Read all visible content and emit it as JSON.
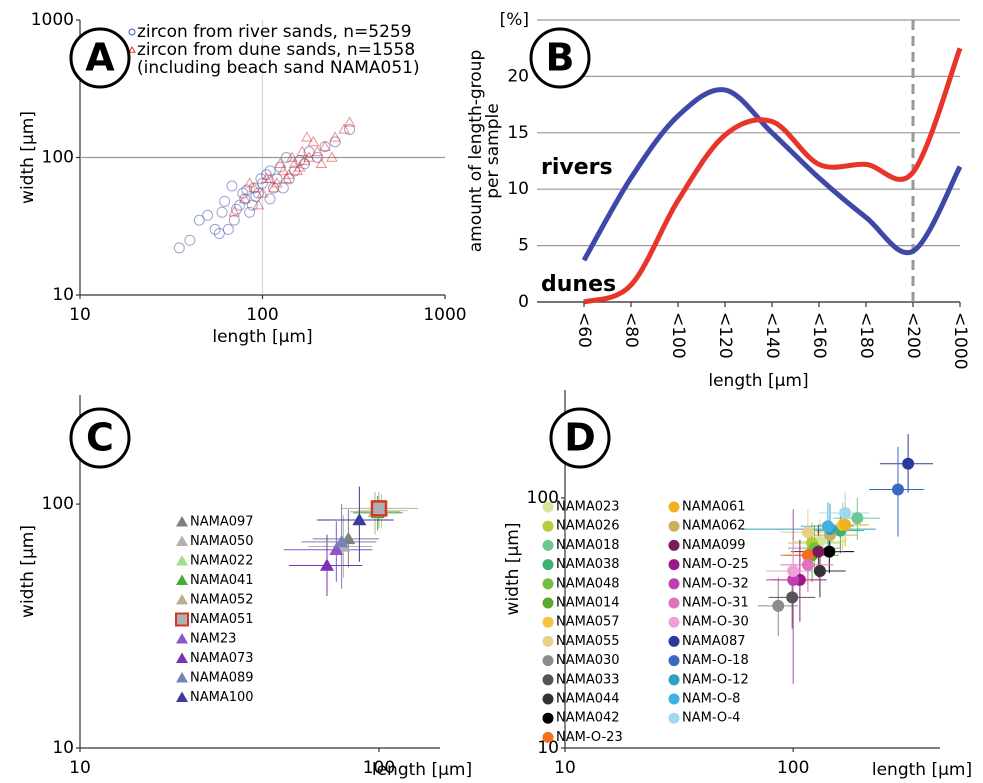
{
  "chart_data": [
    {
      "type": "scatter",
      "panel_label": "A",
      "xlabel": "length [µm]",
      "ylabel": "width [µm]",
      "log_x": true,
      "log_y": true,
      "xlim": [
        10,
        1000
      ],
      "ylim": [
        10,
        1000
      ],
      "xticks": [
        10,
        100,
        1000
      ],
      "yticks": [
        10,
        100,
        1000
      ],
      "grid": true,
      "legend_note": "(including beach sand NAMA051)",
      "series": [
        {
          "name": "zircon from river sands, n=5259",
          "color": "#4a5ab0",
          "marker": "circle",
          "x": [
            40,
            55,
            60,
            70,
            75,
            80,
            85,
            90,
            95,
            100,
            110,
            120,
            130,
            150,
            170,
            200,
            250,
            300,
            45,
            65,
            78,
            88,
            105,
            115,
            140,
            160,
            35,
            50,
            62,
            72,
            82,
            92,
            98,
            125,
            180,
            220,
            58,
            68,
            110,
            135
          ],
          "y": [
            25,
            30,
            40,
            35,
            45,
            50,
            40,
            60,
            55,
            65,
            50,
            70,
            60,
            80,
            90,
            100,
            130,
            160,
            35,
            30,
            55,
            45,
            75,
            60,
            70,
            95,
            22,
            38,
            48,
            42,
            58,
            52,
            70,
            85,
            110,
            120,
            28,
            62,
            80,
            100
          ]
        },
        {
          "name": "zircon from dune sands, n=1558",
          "color": "#e0352a",
          "marker": "triangle",
          "x": [
            80,
            90,
            100,
            110,
            120,
            130,
            140,
            150,
            160,
            170,
            180,
            200,
            220,
            250,
            280,
            95,
            105,
            115,
            125,
            135,
            145,
            155,
            165,
            190,
            210,
            70,
            85,
            240,
            300,
            175
          ],
          "y": [
            50,
            60,
            55,
            70,
            65,
            80,
            75,
            90,
            85,
            95,
            100,
            110,
            120,
            140,
            160,
            45,
            70,
            60,
            90,
            70,
            100,
            80,
            110,
            130,
            90,
            40,
            65,
            100,
            180,
            140
          ]
        }
      ]
    },
    {
      "type": "line",
      "panel_label": "B",
      "xlabel": "length [µm]",
      "ylabel": [
        "amount of length-group",
        "per sample"
      ],
      "categories": [
        "<60",
        "<80",
        "<100",
        "<120",
        "<140",
        "<160",
        "<180",
        "<200",
        "<1000"
      ],
      "ylim": [
        0,
        25
      ],
      "yticks": [
        0,
        5,
        10,
        15,
        20,
        {
          "value": 25,
          "label": "[%]"
        }
      ],
      "grid": true,
      "reference_line": {
        "category": "<200",
        "style": "dashed"
      },
      "series": [
        {
          "name": "rivers",
          "color": "#3f48a8",
          "values": [
            3.7,
            11,
            16.5,
            18.8,
            15,
            11,
            7.5,
            4.5,
            12
          ]
        },
        {
          "name": "dunes",
          "color": "#e8352a",
          "values": [
            0,
            1.5,
            9,
            14.8,
            16,
            12.2,
            12.2,
            11.5,
            22.5
          ]
        }
      ]
    },
    {
      "type": "errorbar-scatter",
      "panel_label": "C",
      "xlabel": "length [µm]",
      "ylabel": "width [µm]",
      "log_x": true,
      "log_y": true,
      "xlim": [
        10,
        160
      ],
      "ylim": [
        10,
        280
      ],
      "xticks": [
        10,
        100
      ],
      "yticks": [
        10,
        100
      ],
      "grid": false,
      "series": [
        {
          "name": "NAMA097",
          "color": "#7f7f7f",
          "marker": "triangle",
          "x": 79,
          "y": 72,
          "xrange": [
            60,
            100
          ],
          "yrange": [
            55,
            95
          ]
        },
        {
          "name": "NAMA050",
          "color": "#b0b0b0",
          "marker": "triangle",
          "x": 76,
          "y": 67,
          "xrange": [
            58,
            95
          ],
          "yrange": [
            50,
            90
          ]
        },
        {
          "name": "NAMA022",
          "color": "#a6dc8c",
          "marker": "triangle",
          "x": 102,
          "y": 94,
          "xrange": [
            85,
            125
          ],
          "yrange": [
            80,
            110
          ]
        },
        {
          "name": "NAMA041",
          "color": "#4aa83c",
          "marker": "triangle",
          "x": 99,
          "y": 92,
          "xrange": [
            82,
            120
          ],
          "yrange": [
            78,
            108
          ]
        },
        {
          "name": "NAMA052",
          "color": "#bcae8e",
          "marker": "triangle",
          "x": 97,
          "y": 93,
          "xrange": [
            80,
            118
          ],
          "yrange": [
            75,
            112
          ]
        },
        {
          "name": "NAMA051",
          "color": "#b0b0b0",
          "edgecolor": "#d8352a",
          "marker": "square",
          "x": 100,
          "y": 96,
          "xrange": [
            75,
            135
          ],
          "yrange": [
            80,
            112
          ]
        },
        {
          "name": "NAM23",
          "color": "#8e54c8",
          "marker": "triangle",
          "x": 72,
          "y": 65,
          "xrange": [
            48,
            95
          ],
          "yrange": [
            48,
            85
          ]
        },
        {
          "name": "NAMA073",
          "color": "#7d32b4",
          "marker": "triangle",
          "x": 67,
          "y": 56,
          "xrange": [
            50,
            88
          ],
          "yrange": [
            42,
            75
          ]
        },
        {
          "name": "NAMA089",
          "color": "#7584b8",
          "marker": "triangle",
          "x": 75,
          "y": 70,
          "xrange": [
            55,
            98
          ],
          "yrange": [
            45,
            100
          ]
        },
        {
          "name": "NAMA100",
          "color": "#3b3b9c",
          "marker": "triangle",
          "x": 86,
          "y": 86,
          "xrange": [
            62,
            112
          ],
          "yrange": [
            58,
            118
          ]
        }
      ]
    },
    {
      "type": "errorbar-scatter",
      "panel_label": "D",
      "xlabel": "length [µm]",
      "ylabel": "width [µm]",
      "log_x": true,
      "log_y": true,
      "xlim": [
        10,
        440
      ],
      "ylim": [
        10,
        270
      ],
      "xticks": [
        10,
        100
      ],
      "yticks": [
        10,
        100
      ],
      "grid": false,
      "series": [
        {
          "name": "NAMA023",
          "color": "#d4e69a",
          "marker": "circle",
          "x": 131,
          "y": 67,
          "xrange": [
            100,
            170
          ],
          "yrange": [
            55,
            82
          ]
        },
        {
          "name": "NAMA026",
          "color": "#b5cc3c",
          "marker": "circle",
          "x": 121,
          "y": 66,
          "xrange": [
            95,
            160
          ],
          "yrange": [
            52,
            80
          ]
        },
        {
          "name": "NAMA018",
          "color": "#6cc890",
          "marker": "circle",
          "x": 191,
          "y": 83,
          "xrange": [
            150,
            240
          ],
          "yrange": [
            68,
            100
          ]
        },
        {
          "name": "NAMA038",
          "color": "#3cb371",
          "marker": "circle",
          "x": 161,
          "y": 74,
          "xrange": [
            125,
            205
          ],
          "yrange": [
            60,
            90
          ]
        },
        {
          "name": "NAMA048",
          "color": "#72c040",
          "marker": "circle",
          "x": 124,
          "y": 63,
          "xrange": [
            95,
            160
          ],
          "yrange": [
            50,
            78
          ]
        },
        {
          "name": "NAMA014",
          "color": "#5aaa2a",
          "marker": "circle",
          "x": 121,
          "y": 59,
          "xrange": [
            92,
            158
          ],
          "yrange": [
            46,
            74
          ]
        },
        {
          "name": "NAMA057",
          "color": "#f5c542",
          "marker": "circle",
          "x": 165,
          "y": 78,
          "xrange": [
            128,
            210
          ],
          "yrange": [
            62,
            96
          ]
        },
        {
          "name": "NAMA055",
          "color": "#e8d08a",
          "marker": "circle",
          "x": 116,
          "y": 73,
          "xrange": [
            88,
            150
          ],
          "yrange": [
            58,
            90
          ]
        },
        {
          "name": "NAMA030",
          "color": "#8c8c8c",
          "marker": "circle",
          "x": 86,
          "y": 37,
          "xrange": [
            70,
            105
          ],
          "yrange": [
            28,
            48
          ]
        },
        {
          "name": "NAMA033",
          "color": "#555555",
          "marker": "circle",
          "x": 99,
          "y": 40,
          "xrange": [
            78,
            125
          ],
          "yrange": [
            30,
            52
          ]
        },
        {
          "name": "NAMA044",
          "color": "#333333",
          "marker": "circle",
          "x": 131,
          "y": 51,
          "xrange": [
            100,
            170
          ],
          "yrange": [
            40,
            64
          ]
        },
        {
          "name": "NAMA042",
          "color": "#000000",
          "marker": "circle",
          "x": 144,
          "y": 61,
          "xrange": [
            112,
            185
          ],
          "yrange": [
            50,
            74
          ]
        },
        {
          "name": "NAM-O-23",
          "color": "#f07020",
          "marker": "circle",
          "x": 116,
          "y": 59,
          "xrange": [
            88,
            150
          ],
          "yrange": [
            45,
            75
          ]
        },
        {
          "name": "NAMA061",
          "color": "#f0b020",
          "marker": "circle",
          "x": 169,
          "y": 78,
          "xrange": [
            130,
            215
          ],
          "yrange": [
            64,
            95
          ]
        },
        {
          "name": "NAMA062",
          "color": "#c8b060",
          "marker": "circle",
          "x": 145,
          "y": 71,
          "xrange": [
            110,
            190
          ],
          "yrange": [
            57,
            88
          ]
        },
        {
          "name": "NAMA099",
          "color": "#7a1a5a",
          "marker": "circle",
          "x": 129,
          "y": 61,
          "xrange": [
            98,
            168
          ],
          "yrange": [
            48,
            78
          ]
        },
        {
          "name": "NAM-O-25",
          "color": "#9a1a8a",
          "marker": "circle",
          "x": 107,
          "y": 47,
          "xrange": [
            80,
            140
          ],
          "yrange": [
            32,
            68
          ]
        },
        {
          "name": "NAM-O-32",
          "color": "#c040b0",
          "marker": "circle",
          "x": 100,
          "y": 47,
          "xrange": [
            76,
            130
          ],
          "yrange": [
            18,
            90
          ]
        },
        {
          "name": "NAM-O-31",
          "color": "#e070c0",
          "marker": "circle",
          "x": 116,
          "y": 54,
          "xrange": [
            88,
            150
          ],
          "yrange": [
            42,
            70
          ]
        },
        {
          "name": "NAM-O-30",
          "color": "#f0a0d8",
          "marker": "circle",
          "x": 100,
          "y": 51,
          "xrange": [
            76,
            130
          ],
          "yrange": [
            38,
            68
          ]
        },
        {
          "name": "NAMA087",
          "color": "#2a3a9a",
          "marker": "circle",
          "x": 319,
          "y": 137,
          "xrange": [
            240,
            410
          ],
          "yrange": [
            105,
            180
          ]
        },
        {
          "name": "NAM-O-18",
          "color": "#3a6ac0",
          "marker": "circle",
          "x": 288,
          "y": 108,
          "xrange": [
            215,
            375
          ],
          "yrange": [
            70,
            160
          ]
        },
        {
          "name": "NAM-O-12",
          "color": "#30a0c0",
          "marker": "circle",
          "x": 145,
          "y": 75,
          "xrange": [
            60,
            230
          ],
          "yrange": [
            58,
            95
          ]
        },
        {
          "name": "NAM-O-8",
          "color": "#40b0e0",
          "marker": "circle",
          "x": 142,
          "y": 77,
          "xrange": [
            108,
            185
          ],
          "yrange": [
            62,
            96
          ]
        },
        {
          "name": "NAM-O-4",
          "color": "#a0d8f0",
          "marker": "circle",
          "x": 169,
          "y": 87,
          "xrange": [
            130,
            215
          ],
          "yrange": [
            70,
            105
          ]
        }
      ]
    }
  ]
}
